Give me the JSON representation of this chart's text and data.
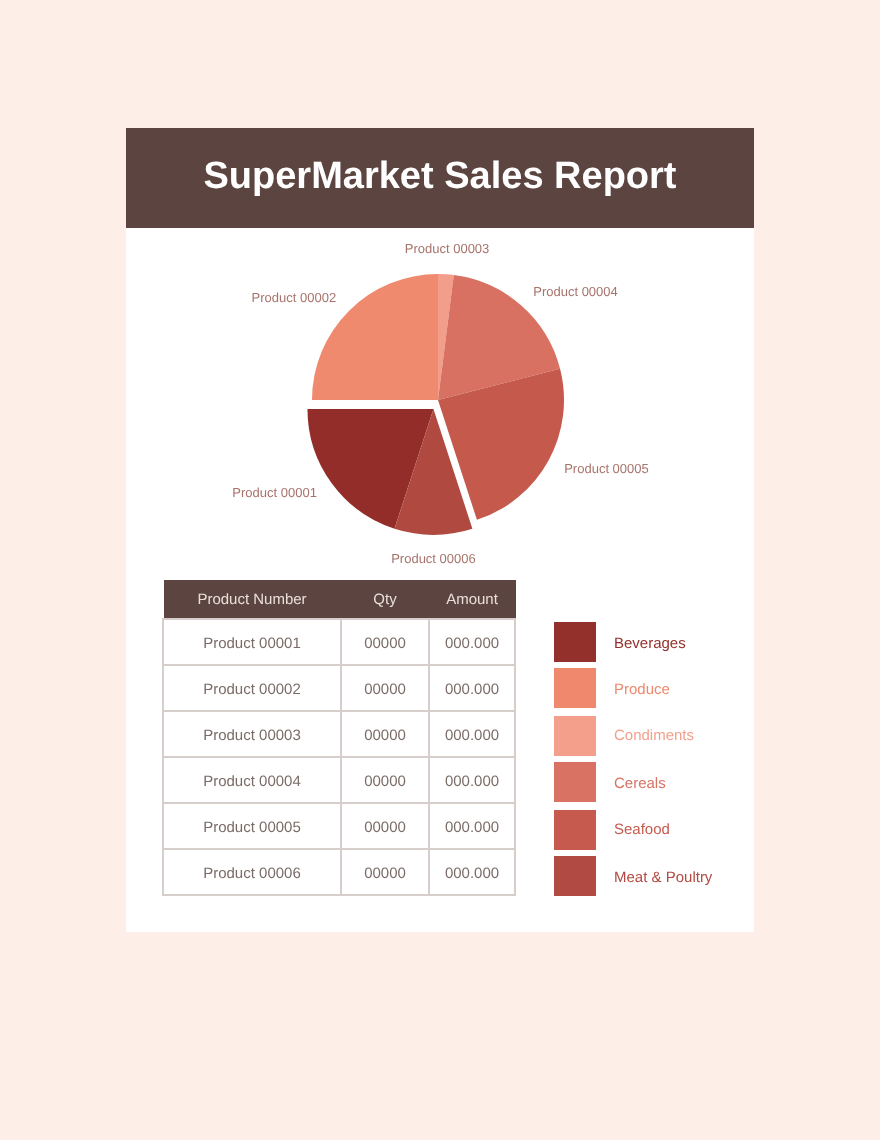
{
  "chart_data": [
    {
      "type": "pie",
      "title": "SuperMarket Sales Report",
      "categories": [
        "Product 00001",
        "Product 00002",
        "Product 00003",
        "Product 00004",
        "Product 00005",
        "Product 00006"
      ],
      "values": [
        20,
        25,
        2,
        19,
        24,
        10
      ],
      "colors": [
        "#932d29",
        "#ef8a6e",
        "#f29e8a",
        "#d87161",
        "#c4594c",
        "#b04a41"
      ]
    },
    {
      "type": "other",
      "categories": [
        "Product Number",
        "Qty",
        "Amount"
      ],
      "annotations": [
        "Product 00001",
        "00000",
        "000.000",
        "Product 00002",
        "00000",
        "000.000",
        "Product 00003",
        "00000",
        "000.000",
        "Product 00004",
        "00000",
        "000.000",
        "Product 00005",
        "00000",
        "000.000",
        "Product 00006",
        "00000",
        "000.000"
      ]
    },
    {
      "type": "other",
      "categories": [
        "Beverages",
        "Produce",
        "Condiments",
        "Cereals",
        "Seafood",
        "Meat & Poultry"
      ],
      "colors": [
        "#93302b",
        "#ef886c",
        "#f39f8b",
        "#d97263",
        "#c65a4e",
        "#b14a42"
      ]
    }
  ]
}
